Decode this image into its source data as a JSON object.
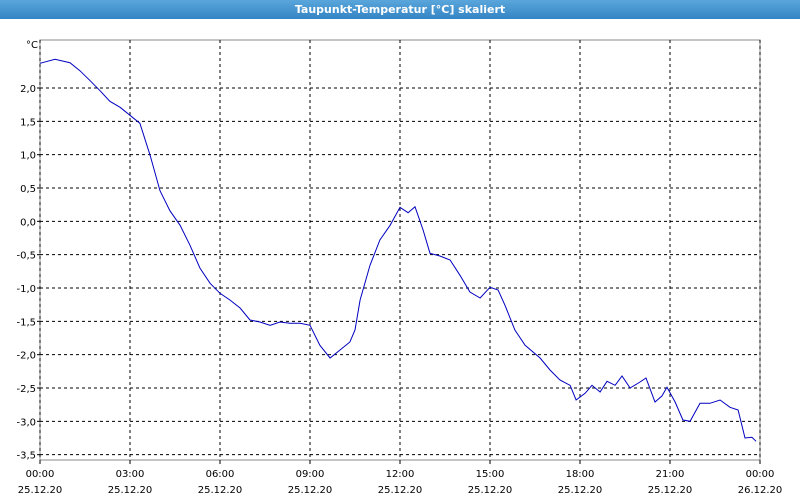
{
  "chart_data": {
    "type": "line",
    "title": "Taupunkt-Temperatur [°C] skaliert",
    "y_unit": "°C",
    "x": [
      0,
      0.5,
      1,
      1.33,
      1.67,
      2,
      2.33,
      2.67,
      3,
      3.33,
      3.67,
      4,
      4.33,
      4.67,
      5,
      5.33,
      5.67,
      6,
      6.33,
      6.67,
      7,
      7.33,
      7.67,
      8,
      8.33,
      8.67,
      9,
      9.33,
      9.67,
      10,
      10.33,
      10.5,
      10.67,
      11,
      11.33,
      11.67,
      12,
      12.27,
      12.5,
      12.77,
      13,
      13.33,
      13.67,
      14,
      14.33,
      14.67,
      15,
      15.27,
      15.5,
      15.83,
      16.17,
      16.67,
      17,
      17.33,
      17.67,
      17.87,
      18.17,
      18.4,
      18.67,
      18.9,
      19.17,
      19.4,
      19.67,
      20,
      20.2,
      20.5,
      20.73,
      20.9,
      21.17,
      21.43,
      21.67,
      22,
      22.33,
      22.67,
      23,
      23.27,
      23.5,
      23.73,
      23.87
    ],
    "series": [
      {
        "name": "Taupunkt",
        "color": "#0000c0",
        "values": [
          2.37,
          2.43,
          2.38,
          2.26,
          2.11,
          1.96,
          1.8,
          1.71,
          1.59,
          1.47,
          0.99,
          0.46,
          0.16,
          -0.06,
          -0.36,
          -0.7,
          -0.93,
          -1.08,
          -1.18,
          -1.3,
          -1.48,
          -1.51,
          -1.56,
          -1.51,
          -1.53,
          -1.53,
          -1.56,
          -1.86,
          -2.05,
          -1.93,
          -1.81,
          -1.63,
          -1.18,
          -0.66,
          -0.28,
          -0.06,
          0.21,
          0.13,
          0.22,
          -0.13,
          -0.48,
          -0.52,
          -0.58,
          -0.81,
          -1.06,
          -1.15,
          -0.99,
          -1.03,
          -1.26,
          -1.63,
          -1.86,
          -2.05,
          -2.23,
          -2.38,
          -2.46,
          -2.68,
          -2.58,
          -2.46,
          -2.56,
          -2.4,
          -2.46,
          -2.32,
          -2.5,
          -2.41,
          -2.35,
          -2.71,
          -2.62,
          -2.49,
          -2.71,
          -2.98,
          -3.0,
          -2.73,
          -2.73,
          -2.68,
          -2.79,
          -2.83,
          -3.25,
          -3.24,
          -3.3
        ]
      }
    ],
    "xlim": [
      0,
      24
    ],
    "xticks": [
      {
        "value": 0,
        "label": "00:00",
        "date": "25.12.20"
      },
      {
        "value": 3,
        "label": "03:00",
        "date": "25.12.20"
      },
      {
        "value": 6,
        "label": "06:00",
        "date": "25.12.20"
      },
      {
        "value": 9,
        "label": "09:00",
        "date": "25.12.20"
      },
      {
        "value": 12,
        "label": "12:00",
        "date": "25.12.20"
      },
      {
        "value": 15,
        "label": "15:00",
        "date": "25.12.20"
      },
      {
        "value": 18,
        "label": "18:00",
        "date": "25.12.20"
      },
      {
        "value": 21,
        "label": "21:00",
        "date": "25.12.20"
      },
      {
        "value": 24,
        "label": "00:00",
        "date": "26.12.20"
      }
    ],
    "ylim": [
      -3.58,
      2.72
    ],
    "yticks": [
      {
        "value": 2,
        "label": "2,0"
      },
      {
        "value": 1.5,
        "label": "1,5"
      },
      {
        "value": 1,
        "label": "1,0"
      },
      {
        "value": 0.5,
        "label": "0,5"
      },
      {
        "value": 0,
        "label": "0,0"
      },
      {
        "value": -0.5,
        "label": "-0,5"
      },
      {
        "value": -1,
        "label": "-1,0"
      },
      {
        "value": -1.5,
        "label": "-1,5"
      },
      {
        "value": -2,
        "label": "-2,0"
      },
      {
        "value": -2.5,
        "label": "-2,5"
      },
      {
        "value": -3,
        "label": "-3,0"
      },
      {
        "value": -3.5,
        "label": "-3,5"
      }
    ],
    "grid": true
  }
}
